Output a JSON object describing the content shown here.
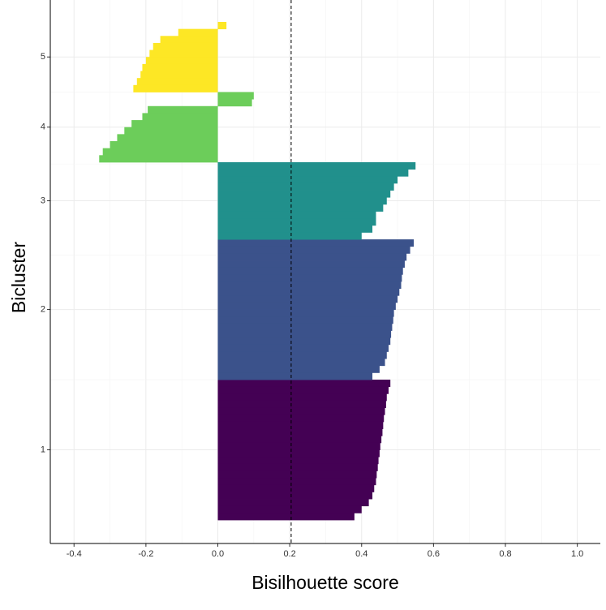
{
  "chart_data": {
    "type": "silhouette",
    "x_label": "Bisilhouette score",
    "y_label": "Bicluster",
    "xlim": [
      -0.466,
      1.064
    ],
    "xticks": [
      -0.4,
      -0.2,
      {
        "value": 0,
        "label": "0.0"
      },
      0.2,
      0.4,
      0.6,
      0.8,
      {
        "value": 1,
        "label": "1.0"
      }
    ],
    "grid": true,
    "reference_line": 0.204,
    "series": [
      {
        "name": "1",
        "color": "#440154",
        "values": [
          0.48,
          0.475,
          0.47,
          0.468,
          0.465,
          0.462,
          0.46,
          0.458,
          0.455,
          0.452,
          0.45,
          0.447,
          0.445,
          0.442,
          0.44,
          0.435,
          0.43,
          0.42,
          0.4,
          0.38
        ]
      },
      {
        "name": "2",
        "color": "#3b528b",
        "values": [
          0.545,
          0.535,
          0.525,
          0.52,
          0.515,
          0.512,
          0.51,
          0.505,
          0.5,
          0.495,
          0.49,
          0.488,
          0.485,
          0.482,
          0.48,
          0.475,
          0.47,
          0.465,
          0.45,
          0.43
        ]
      },
      {
        "name": "3",
        "color": "#21908c",
        "values": [
          0.55,
          0.53,
          0.5,
          0.49,
          0.48,
          0.47,
          0.46,
          0.44,
          0.44,
          0.43,
          0.4
        ]
      },
      {
        "name": "4",
        "color": "#6ccd5a",
        "values": [
          0.1,
          0.095,
          -0.195,
          -0.21,
          -0.24,
          -0.26,
          -0.28,
          -0.3,
          -0.32,
          -0.33
        ]
      },
      {
        "name": "5",
        "color": "#fde725",
        "values": [
          0.024,
          -0.11,
          -0.16,
          -0.18,
          -0.19,
          -0.2,
          -0.21,
          -0.215,
          -0.225,
          -0.235
        ]
      }
    ]
  }
}
